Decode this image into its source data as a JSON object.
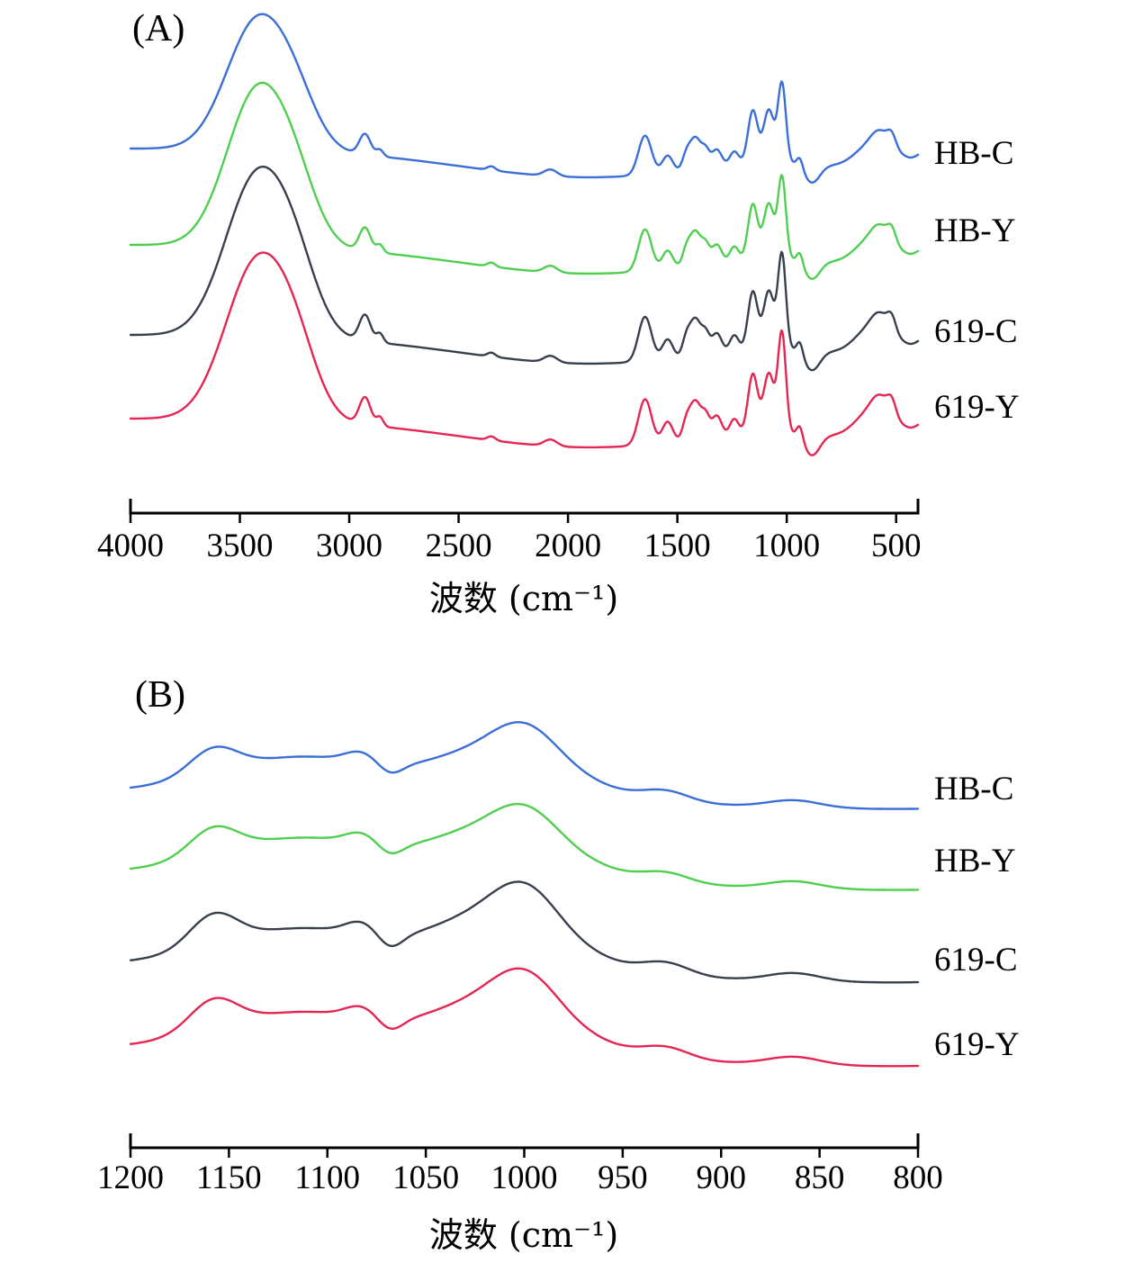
{
  "figure": {
    "background_color": "#ffffff",
    "axis_color": "#000000",
    "description_labels": {
      "panel_a": "(A)",
      "panel_b": "(B)"
    }
  },
  "chart_data": [
    {
      "id": "A",
      "type": "line",
      "panel_label": "(A)",
      "xlabel": "波数 (cm⁻¹)",
      "ylabel": "",
      "x_range": [
        4000,
        400
      ],
      "x_ticks": [
        4000,
        3500,
        3000,
        2500,
        2000,
        1500,
        1000,
        500
      ],
      "x_axis_direction": "decreasing",
      "grid": false,
      "legend_position": "right-of-curves",
      "y_units": "absorbance (a.u., curves vertically offset)",
      "series": [
        {
          "name": "HB-C",
          "color": "#3a6fd8",
          "peaks": [
            [
              3420,
              140,
              0.98
            ],
            [
              3240,
              100,
              0.25
            ],
            [
              2928,
              26,
              0.16
            ],
            [
              2860,
              16,
              0.05
            ],
            [
              2350,
              18,
              0.03
            ],
            [
              2080,
              30,
              0.05
            ],
            [
              1900,
              600,
              -0.22
            ],
            [
              1648,
              30,
              0.3
            ],
            [
              1545,
              24,
              0.13
            ],
            [
              1460,
              18,
              0.1
            ],
            [
              1418,
              26,
              0.24
            ],
            [
              1370,
              18,
              0.12
            ],
            [
              1320,
              22,
              0.13
            ],
            [
              1240,
              20,
              0.1
            ],
            [
              1155,
              22,
              0.4
            ],
            [
              1082,
              24,
              0.4
            ],
            [
              1022,
              18,
              0.6
            ],
            [
              940,
              14,
              0.08
            ],
            [
              885,
              36,
              -0.14
            ],
            [
              750,
              180,
              -0.09
            ],
            [
              640,
              60,
              0.1
            ],
            [
              572,
              42,
              0.16
            ],
            [
              520,
              20,
              0.1
            ],
            [
              430,
              30,
              -0.04
            ]
          ]
        },
        {
          "name": "HB-Y",
          "color": "#4fcf4f",
          "peaks": [
            [
              3420,
              140,
              1.18
            ],
            [
              3240,
              100,
              0.3
            ],
            [
              2928,
              26,
              0.18
            ],
            [
              2860,
              16,
              0.06
            ],
            [
              2350,
              18,
              0.03
            ],
            [
              2080,
              30,
              0.05
            ],
            [
              1900,
              600,
              -0.22
            ],
            [
              1648,
              30,
              0.32
            ],
            [
              1545,
              24,
              0.14
            ],
            [
              1460,
              18,
              0.11
            ],
            [
              1418,
              26,
              0.26
            ],
            [
              1370,
              18,
              0.13
            ],
            [
              1320,
              22,
              0.14
            ],
            [
              1240,
              20,
              0.11
            ],
            [
              1155,
              22,
              0.42
            ],
            [
              1082,
              24,
              0.42
            ],
            [
              1022,
              18,
              0.62
            ],
            [
              940,
              14,
              0.09
            ],
            [
              885,
              36,
              -0.14
            ],
            [
              750,
              180,
              -0.09
            ],
            [
              640,
              60,
              0.11
            ],
            [
              572,
              42,
              0.17
            ],
            [
              520,
              20,
              0.11
            ],
            [
              430,
              30,
              -0.04
            ]
          ]
        },
        {
          "name": "619-C",
          "color": "#39404d",
          "peaks": [
            [
              3420,
              145,
              1.22
            ],
            [
              3240,
              100,
              0.32
            ],
            [
              2928,
              26,
              0.2
            ],
            [
              2860,
              16,
              0.07
            ],
            [
              2350,
              18,
              0.03
            ],
            [
              2080,
              30,
              0.05
            ],
            [
              1900,
              600,
              -0.22
            ],
            [
              1648,
              30,
              0.34
            ],
            [
              1545,
              24,
              0.15
            ],
            [
              1460,
              18,
              0.12
            ],
            [
              1418,
              26,
              0.28
            ],
            [
              1370,
              18,
              0.14
            ],
            [
              1320,
              22,
              0.15
            ],
            [
              1240,
              20,
              0.12
            ],
            [
              1155,
              22,
              0.44
            ],
            [
              1082,
              24,
              0.44
            ],
            [
              1022,
              18,
              0.72
            ],
            [
              940,
              14,
              0.1
            ],
            [
              885,
              36,
              -0.15
            ],
            [
              750,
              180,
              -0.09
            ],
            [
              640,
              60,
              0.12
            ],
            [
              572,
              42,
              0.18
            ],
            [
              520,
              20,
              0.12
            ],
            [
              430,
              30,
              -0.04
            ]
          ]
        },
        {
          "name": "619-Y",
          "color": "#e52552",
          "peaks": [
            [
              3420,
              145,
              1.2
            ],
            [
              3240,
              100,
              0.33
            ],
            [
              2928,
              26,
              0.21
            ],
            [
              2860,
              16,
              0.07
            ],
            [
              2350,
              18,
              0.03
            ],
            [
              2080,
              30,
              0.05
            ],
            [
              1900,
              600,
              -0.22
            ],
            [
              1648,
              30,
              0.35
            ],
            [
              1545,
              24,
              0.16
            ],
            [
              1460,
              18,
              0.12
            ],
            [
              1418,
              26,
              0.29
            ],
            [
              1370,
              18,
              0.15
            ],
            [
              1320,
              22,
              0.16
            ],
            [
              1240,
              20,
              0.12
            ],
            [
              1155,
              22,
              0.45
            ],
            [
              1082,
              24,
              0.45
            ],
            [
              1022,
              18,
              0.76
            ],
            [
              940,
              14,
              0.1
            ],
            [
              885,
              36,
              -0.16
            ],
            [
              750,
              180,
              -0.09
            ],
            [
              640,
              60,
              0.12
            ],
            [
              572,
              42,
              0.19
            ],
            [
              520,
              20,
              0.12
            ],
            [
              430,
              30,
              -0.04
            ]
          ]
        }
      ]
    },
    {
      "id": "B",
      "type": "line",
      "panel_label": "(B)",
      "xlabel": "波数 (cm⁻¹)",
      "ylabel": "",
      "x_range": [
        1200,
        800
      ],
      "x_ticks": [
        1200,
        1150,
        1100,
        1050,
        1000,
        950,
        900,
        850,
        800
      ],
      "x_axis_direction": "decreasing",
      "grid": false,
      "legend_position": "right-of-curves",
      "y_units": "absorbance (a.u., curves vertically offset)",
      "series": [
        {
          "name": "HB-C",
          "color": "#3a6fd8",
          "peaks": [
            [
              1158,
              12,
              0.32
            ],
            [
              1110,
              45,
              0.5
            ],
            [
              1083,
              8,
              0.14
            ],
            [
              1068,
              6,
              -0.12
            ],
            [
              1030,
              22,
              0.4
            ],
            [
              1000,
              17,
              0.62
            ],
            [
              980,
              26,
              0.28
            ],
            [
              928,
              12,
              0.14
            ],
            [
              863,
              13,
              0.09
            ],
            [
              890,
              130,
              -0.15
            ],
            [
              790,
              60,
              -0.1
            ]
          ]
        },
        {
          "name": "HB-Y",
          "color": "#4fcf4f",
          "peaks": [
            [
              1158,
              12,
              0.34
            ],
            [
              1110,
              45,
              0.5
            ],
            [
              1083,
              8,
              0.14
            ],
            [
              1068,
              6,
              -0.12
            ],
            [
              1030,
              22,
              0.42
            ],
            [
              1000,
              17,
              0.6
            ],
            [
              980,
              26,
              0.28
            ],
            [
              928,
              12,
              0.13
            ],
            [
              863,
              13,
              0.09
            ],
            [
              890,
              130,
              -0.15
            ],
            [
              790,
              60,
              -0.1
            ]
          ]
        },
        {
          "name": "619-C",
          "color": "#39404d",
          "peaks": [
            [
              1158,
              12,
              0.4
            ],
            [
              1110,
              45,
              0.52
            ],
            [
              1083,
              8,
              0.16
            ],
            [
              1068,
              6,
              -0.16
            ],
            [
              1030,
              22,
              0.48
            ],
            [
              1000,
              17,
              0.75
            ],
            [
              980,
              26,
              0.3
            ],
            [
              928,
              12,
              0.16
            ],
            [
              863,
              13,
              0.1
            ],
            [
              890,
              130,
              -0.16
            ],
            [
              790,
              60,
              -0.1
            ]
          ]
        },
        {
          "name": "619-Y",
          "color": "#e52552",
          "peaks": [
            [
              1158,
              12,
              0.38
            ],
            [
              1110,
              45,
              0.52
            ],
            [
              1083,
              8,
              0.15
            ],
            [
              1068,
              6,
              -0.14
            ],
            [
              1030,
              22,
              0.46
            ],
            [
              1000,
              17,
              0.72
            ],
            [
              980,
              26,
              0.3
            ],
            [
              928,
              12,
              0.15
            ],
            [
              863,
              13,
              0.1
            ],
            [
              890,
              130,
              -0.16
            ],
            [
              790,
              60,
              -0.1
            ]
          ]
        }
      ]
    }
  ]
}
